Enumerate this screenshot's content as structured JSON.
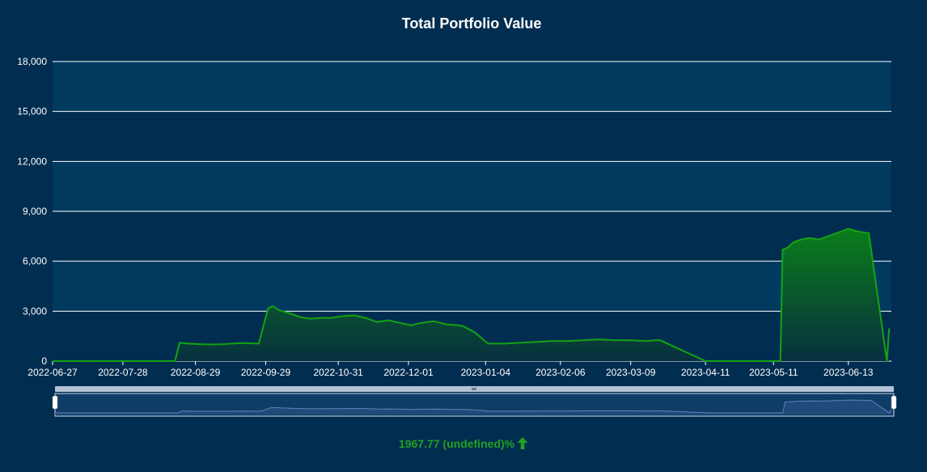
{
  "colors": {
    "background": "#012d50",
    "plot_band": "#003a5e",
    "gridline": "#ffffff",
    "series_line": "#13a313",
    "series_fill_top": "#0a7d1a",
    "series_fill_bottom": "#08303f",
    "navigator_fill": "#1f4b7a",
    "navigator_line": "#5d83b4",
    "summary_text": "#21a121"
  },
  "summary": {
    "text": "1967.77 (undefined)%",
    "direction": "up",
    "arrow_icon": "arrow-up-icon"
  },
  "chart_data": {
    "type": "area",
    "title": "Total Portfolio Value",
    "xlabel": "",
    "ylabel": "",
    "ylim": [
      0,
      18000
    ],
    "yticks": [
      "0",
      "3,000",
      "6,000",
      "9,000",
      "12,000",
      "15,000",
      "18,000"
    ],
    "xticks": [
      "2022-06-27",
      "2022-07-28",
      "2022-08-29",
      "2022-09-29",
      "2022-10-31",
      "2022-12-01",
      "2023-01-04",
      "2023-02-06",
      "2023-03-09",
      "2023-04-11",
      "2023-05-11",
      "2023-06-13"
    ],
    "xlim": [
      "2022-06-27",
      "2023-07-02"
    ],
    "grid": true,
    "legend": "none",
    "navigator": true,
    "series": [
      {
        "x": [
          "2022-06-27",
          "2022-08-20",
          "2022-08-22",
          "2022-08-26",
          "2022-09-02",
          "2022-09-09",
          "2022-09-14",
          "2022-09-19",
          "2022-09-24",
          "2022-09-26",
          "2022-09-30",
          "2022-10-02",
          "2022-10-05",
          "2022-10-09",
          "2022-10-14",
          "2022-10-19",
          "2022-10-23",
          "2022-10-28",
          "2022-11-02",
          "2022-11-07",
          "2022-11-12",
          "2022-11-17",
          "2022-11-22",
          "2022-11-27",
          "2022-12-02",
          "2022-12-07",
          "2022-12-12",
          "2022-12-18",
          "2022-12-23",
          "2022-12-25",
          "2022-12-30",
          "2023-01-05",
          "2023-01-12",
          "2023-01-19",
          "2023-01-26",
          "2023-02-02",
          "2023-02-09",
          "2023-02-16",
          "2023-02-23",
          "2023-03-02",
          "2023-03-09",
          "2023-03-16",
          "2023-03-20",
          "2023-03-22",
          "2023-04-11",
          "2023-05-14",
          "2023-05-15",
          "2023-05-17",
          "2023-05-20",
          "2023-05-23",
          "2023-05-27",
          "2023-05-31",
          "2023-06-04",
          "2023-06-09",
          "2023-06-13",
          "2023-06-17",
          "2023-06-21",
          "2023-06-22",
          "2023-06-30",
          "2023-07-01"
        ],
        "values": [
          0,
          0,
          1100,
          1050,
          1000,
          1000,
          1050,
          1080,
          1060,
          1050,
          3150,
          3300,
          3050,
          2900,
          2650,
          2550,
          2600,
          2600,
          2700,
          2750,
          2600,
          2350,
          2450,
          2300,
          2150,
          2300,
          2400,
          2200,
          2150,
          2100,
          1750,
          1050,
          1050,
          1100,
          1150,
          1200,
          1200,
          1250,
          1300,
          1250,
          1250,
          1200,
          1250,
          1250,
          0,
          0,
          6700,
          6800,
          7150,
          7300,
          7400,
          7300,
          7500,
          7750,
          7950,
          7800,
          7700,
          7700,
          0,
          1967.77
        ]
      }
    ]
  }
}
